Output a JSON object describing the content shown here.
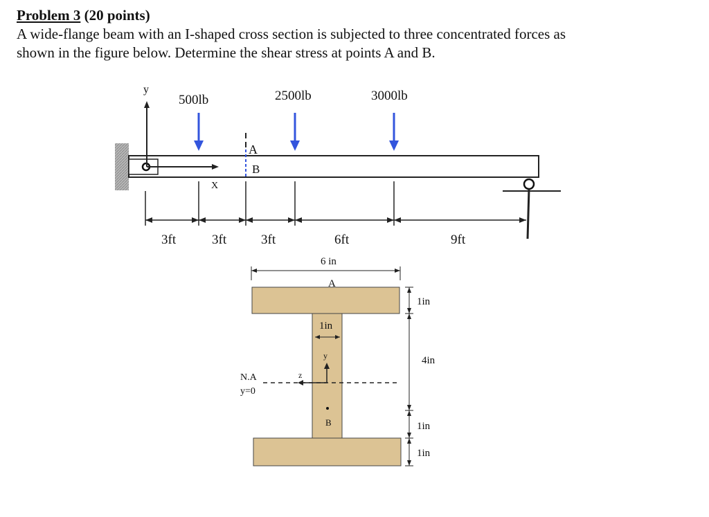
{
  "problem": {
    "number_label": "Problem 3",
    "points": "(20 points)",
    "statement_line1": "A wide-flange beam with an I-shaped cross section is subjected to three concentrated forces as",
    "statement_line2": "shown in the figure below. Determine the shear stress at points A and B."
  },
  "beam": {
    "y_axis_label": "y",
    "x_axis_label": "X",
    "forces": [
      "500lb",
      "2500lb",
      "3000lb"
    ],
    "point_a": "A",
    "point_b": "B",
    "spans": [
      "3ft",
      "3ft",
      "3ft",
      "6ft",
      "9ft"
    ],
    "force_arrow_color": "#3355dd"
  },
  "section": {
    "flange_width": "6 in",
    "web_thickness": "1in",
    "top_flange_thickness": "1in",
    "web_height": "4in",
    "bottom_dim_upper": "1in",
    "bottom_dim_lower": "1in",
    "point_a": "A",
    "point_b": "B",
    "na_label": "N.A",
    "na_eq": "y=0",
    "z_label": "z",
    "y_label": "y",
    "fill_color": "#dcc394"
  }
}
